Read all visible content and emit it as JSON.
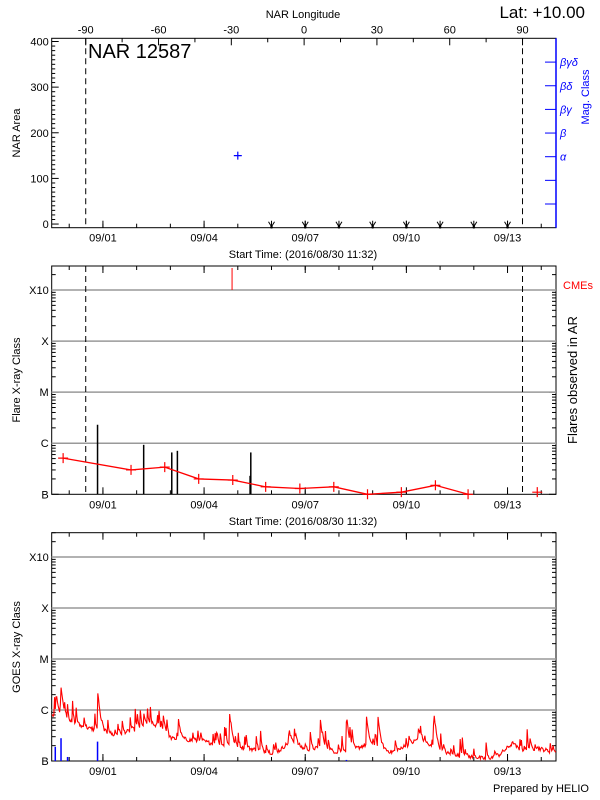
{
  "header": {
    "lat_label": "Lat: +10.00"
  },
  "footer": {
    "credit": "Prepared by HELIO"
  },
  "chart_data": [
    {
      "type": "scatter",
      "title": "NAR 12587",
      "xlabel": "Start Time: (2016/08/30 11:32)",
      "xlim": [
        "2016-08-30T11:32",
        "2016-09-14T10:30"
      ],
      "x_ticks": [
        {
          "t": "2016-09-01T00:00",
          "label": "09/01"
        },
        {
          "t": "2016-09-04T00:00",
          "label": "09/04"
        },
        {
          "t": "2016-09-07T00:00",
          "label": "09/07"
        },
        {
          "t": "2016-09-10T00:00",
          "label": "09/10"
        },
        {
          "t": "2016-09-13T00:00",
          "label": "09/13"
        }
      ],
      "top_axis": {
        "label": "NAR Longitude",
        "ticks": [
          {
            "value": -90,
            "label": "-90"
          },
          {
            "value": -60,
            "label": "-60"
          },
          {
            "value": -30,
            "label": "-30"
          },
          {
            "value": 0,
            "label": "0"
          },
          {
            "value": 30,
            "label": "30"
          },
          {
            "value": 60,
            "label": "60"
          },
          {
            "value": 90,
            "label": "90"
          }
        ]
      },
      "ylabel": "NAR Area",
      "ylim": [
        -8,
        407
      ],
      "y_ticks": [
        {
          "value": 0,
          "label": "0"
        },
        {
          "value": 100,
          "label": "100"
        },
        {
          "value": 200,
          "label": "200"
        },
        {
          "value": 300,
          "label": "300"
        },
        {
          "value": 400,
          "label": "400"
        }
      ],
      "right_axis": {
        "label": "Mag. Class",
        "color": "#0000ff",
        "classes_bottom_to_top": [
          "",
          "",
          "α",
          "β",
          "βγ",
          "βδ",
          "βγδ"
        ]
      },
      "points": [
        {
          "t": "2016-09-05T00:00",
          "area": 150,
          "mag_class": "α"
        }
      ],
      "point_color": "#0000ff",
      "limb_crossings": [
        {
          "longitude": -90,
          "t": "2016-08-31T11:45"
        },
        {
          "longitude": 90,
          "t": "2016-09-13T10:40"
        }
      ],
      "bottom_markers": [
        "2016-09-06T00:00",
        "2016-09-07T00:00",
        "2016-09-08T00:00",
        "2016-09-09T00:00",
        "2016-09-10T00:00",
        "2016-09-11T00:00",
        "2016-09-12T00:00",
        "2016-09-13T00:00"
      ]
    },
    {
      "type": "line",
      "xlabel": "Start Time: (2016/08/30 11:32)",
      "ylabel": "Flare X-ray Class",
      "right_label": "Flares observed in AR",
      "cme_label": "CMEs",
      "y_scale": "log",
      "ylim": [
        1e-07,
        0.00295
      ],
      "y_ticks": [
        {
          "value": 1e-07,
          "label": "B"
        },
        {
          "value": 1e-06,
          "label": "C"
        },
        {
          "value": 1e-05,
          "label": "M"
        },
        {
          "value": 0.0001,
          "label": "X"
        },
        {
          "value": 0.001,
          "label": "X10"
        }
      ],
      "grid": true,
      "line_color": "#ff0000",
      "background_level": [
        {
          "t": "2016-08-30T19:40",
          "flux": 5.1e-07
        },
        {
          "t": "2016-09-01T20:00",
          "flux": 3e-07
        },
        {
          "t": "2016-09-02T20:00",
          "flux": 3.4e-07
        },
        {
          "t": "2016-09-03T20:10",
          "flux": 2e-07
        },
        {
          "t": "2016-09-04T20:25",
          "flux": 1.9e-07
        },
        {
          "t": "2016-09-05T19:50",
          "flux": 1.4e-07
        },
        {
          "t": "2016-09-06T20:10",
          "flux": 1.3e-07
        },
        {
          "t": "2016-09-07T20:20",
          "flux": 1.4e-07
        },
        {
          "t": "2016-09-08T20:20",
          "flux": 1e-07
        },
        {
          "t": "2016-09-09T20:25",
          "flux": 1.1e-07
        },
        {
          "t": "2016-09-10T20:40",
          "flux": 1.5e-07
        },
        {
          "t": "2016-09-11T19:55",
          "flux": 1e-07
        }
      ],
      "isolated_points": [
        {
          "t": "2016-09-13T21:10",
          "flux": 1.1e-07
        }
      ],
      "flares": [
        {
          "t": "2016-08-31T20:10",
          "peak_flux": 2.3e-06
        },
        {
          "t": "2016-09-02T05:00",
          "peak_flux": 9.3e-07
        },
        {
          "t": "2016-09-03T01:00",
          "peak_flux": 6.6e-07
        },
        {
          "t": "2016-09-03T05:00",
          "peak_flux": 7.1e-07
        },
        {
          "t": "2016-09-05T09:15",
          "peak_flux": 6.6e-07
        },
        {
          "t": "2016-09-05T08:45",
          "peak_flux": 2.3e-07
        }
      ],
      "flare_color": "#000000",
      "cmes": [
        {
          "t": "2016-09-04T19:55"
        }
      ],
      "cme_color": "#ff0000"
    },
    {
      "type": "line",
      "ylabel": "GOES X-ray Class",
      "y_scale": "log",
      "ylim": [
        1e-07,
        0.003
      ],
      "y_ticks": [
        {
          "value": 1e-07,
          "label": "B"
        },
        {
          "value": 1e-06,
          "label": "C"
        },
        {
          "value": 1e-05,
          "label": "M"
        },
        {
          "value": 0.0001,
          "label": "X"
        },
        {
          "value": 0.001,
          "label": "X10"
        }
      ],
      "grid": true,
      "series": [
        {
          "color": "#ff0000",
          "background": [
            {
              "t": "2016-08-30T11:32",
              "flux": 7.6e-07
            },
            {
              "t": "2016-08-30T19:40",
              "flux": 7.6e-07
            },
            {
              "t": "2016-08-31T02:25",
              "flux": 5.5e-07
            },
            {
              "t": "2016-08-31T13:20",
              "flux": 4.4e-07
            },
            {
              "t": "2016-08-31T20:10",
              "flux": 4.1e-07
            },
            {
              "t": "2016-09-01T08:30",
              "flux": 3.2e-07
            },
            {
              "t": "2016-09-01T22:05",
              "flux": 4.1e-07
            },
            {
              "t": "2016-09-02T14:35",
              "flux": 5.1e-07
            },
            {
              "t": "2016-09-02T22:45",
              "flux": 2.8e-07
            },
            {
              "t": "2016-09-03T12:25",
              "flux": 2.6e-07
            },
            {
              "t": "2016-09-04T00:15",
              "flux": 2.4e-07
            },
            {
              "t": "2016-09-04T10:15",
              "flux": 2.1e-07
            },
            {
              "t": "2016-09-05T00:00",
              "flux": 1.9e-07
            },
            {
              "t": "2016-09-05T13:40",
              "flux": 1.66e-07
            },
            {
              "t": "2016-09-06T03:20",
              "flux": 1.4e-07
            },
            {
              "t": "2016-09-06T14:10",
              "flux": 2.6e-07
            },
            {
              "t": "2016-09-07T00:15",
              "flux": 1.66e-07
            },
            {
              "t": "2016-09-07T09:20",
              "flux": 1.8e-07
            },
            {
              "t": "2016-09-07T23:00",
              "flux": 1.5e-07
            },
            {
              "t": "2016-09-08T09:50",
              "flux": 1.66e-07
            },
            {
              "t": "2016-09-08T19:25",
              "flux": 2.1e-07
            },
            {
              "t": "2016-09-09T03:40",
              "flux": 1.9e-07
            },
            {
              "t": "2016-09-09T13:15",
              "flux": 1.5e-07
            },
            {
              "t": "2016-09-10T00:45",
              "flux": 1.9e-07
            },
            {
              "t": "2016-09-10T08:25",
              "flux": 2.8e-07
            },
            {
              "t": "2016-09-10T19:25",
              "flux": 1.8e-07
            },
            {
              "t": "2016-09-11T09:05",
              "flux": 1.3e-07
            },
            {
              "t": "2016-09-11T22:50",
              "flux": 1.2e-07
            },
            {
              "t": "2016-09-12T09:40",
              "flux": 1.1e-07
            },
            {
              "t": "2016-09-12T17:50",
              "flux": 1.3e-07
            },
            {
              "t": "2016-09-13T03:25",
              "flux": 2.2e-07
            },
            {
              "t": "2016-09-13T10:15",
              "flux": 1.5e-07
            },
            {
              "t": "2016-09-13T21:10",
              "flux": 1.8e-07
            },
            {
              "t": "2016-09-14T10:30",
              "flux": 1.45e-07
            }
          ],
          "peaks": [
            {
              "t": "2016-08-30T14:40",
              "flux": 2.3e-06
            },
            {
              "t": "2016-08-30T18:10",
              "flux": 2.8e-06
            },
            {
              "t": "2016-08-31T20:10",
              "flux": 2.4e-06
            },
            {
              "t": "2016-09-02T05:00",
              "flux": 9.1e-07
            },
            {
              "t": "2016-09-02T18:40",
              "flux": 9.1e-07
            },
            {
              "t": "2016-09-03T05:35",
              "flux": 7.3e-07
            },
            {
              "t": "2016-09-04T17:55",
              "flux": 1e-06
            },
            {
              "t": "2016-09-06T12:00",
              "flux": 3.5e-07
            },
            {
              "t": "2016-09-07T10:40",
              "flux": 6.9e-07
            },
            {
              "t": "2016-09-08T05:20",
              "flux": 8.7e-07
            },
            {
              "t": "2016-09-08T19:25",
              "flux": 8.4e-07
            },
            {
              "t": "2016-09-09T03:40",
              "flux": 8.1e-07
            },
            {
              "t": "2016-09-10T08:25",
              "flux": 4.3e-07
            },
            {
              "t": "2016-09-10T19:25",
              "flux": 1e-06
            },
            {
              "t": "2016-09-13T03:25",
              "flux": 2.4e-07
            }
          ]
        },
        {
          "color": "#0000ff",
          "bars": [
            {
              "t": "2016-08-30T14:05",
              "flux": 1.9e-07
            },
            {
              "t": "2016-08-30T18:10",
              "flux": 2.8e-07
            },
            {
              "t": "2016-08-30T22:50",
              "flux": 1.2e-07
            },
            {
              "t": "2016-08-31T20:10",
              "flux": 2.4e-07
            },
            {
              "t": "2016-09-08T05:20",
              "flux": 1.05e-07
            }
          ]
        }
      ]
    }
  ]
}
